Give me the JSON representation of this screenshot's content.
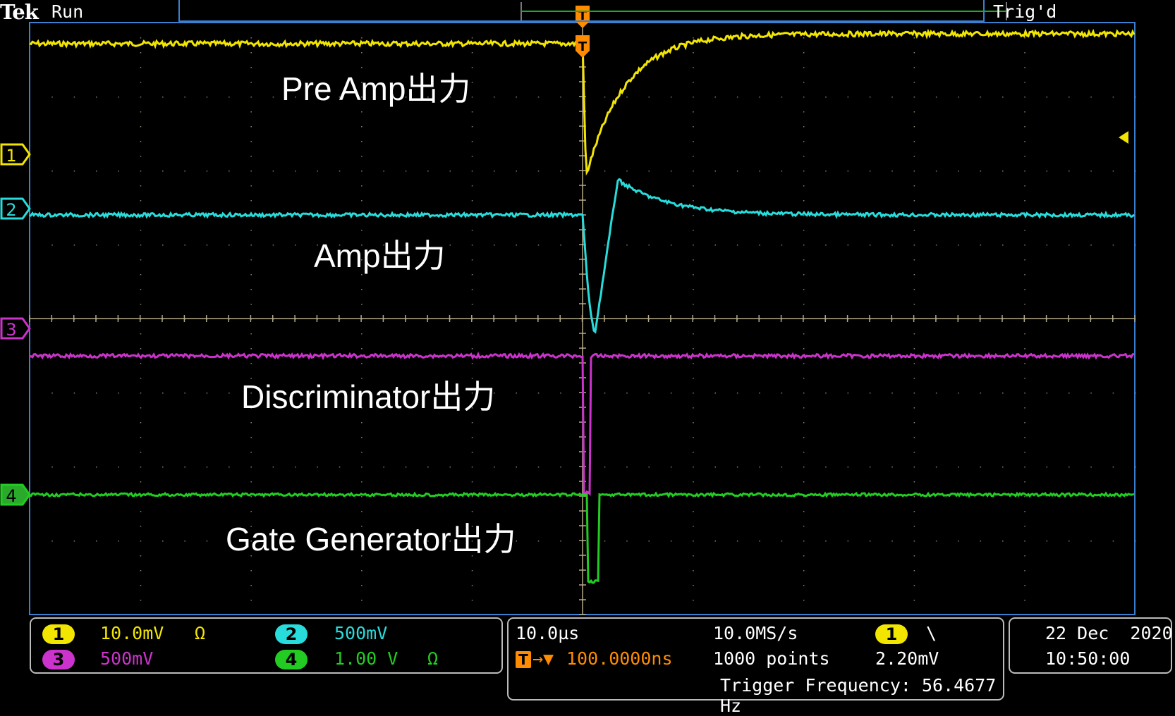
{
  "header": {
    "brand": "Tek",
    "state": "Run",
    "trigger_status": "Trig'd"
  },
  "markers": {
    "trigger": "T",
    "channels": [
      "1",
      "2",
      "3",
      "4"
    ]
  },
  "trace_labels": {
    "ch1": "Pre Amp出力",
    "ch2": "Amp出力",
    "ch3": "Discriminator出力",
    "ch4": "Gate Generator出力"
  },
  "channels": [
    {
      "number": "1",
      "scale": "10.0mV",
      "coupling_symbol": "Ω",
      "color": "#f2e600"
    },
    {
      "number": "2",
      "scale": "500mV",
      "coupling_symbol": "",
      "color": "#29dcdc"
    },
    {
      "number": "3",
      "scale": "500mV",
      "coupling_symbol": "",
      "color": "#cc33cc"
    },
    {
      "number": "4",
      "scale": "1.00 V",
      "coupling_symbol": "Ω",
      "color": "#22cc22"
    }
  ],
  "timebase": {
    "scale": "10.0µs",
    "sample_rate": "10.0MS/s",
    "trigger_icon": "T",
    "position": "100.0000ns",
    "record_length": "1000 points",
    "trigger_source": "1",
    "trigger_slope_symbol": "\\",
    "trigger_level": "2.20mV",
    "trigger_frequency": "Trigger Frequency: 56.4677 Hz"
  },
  "datetime": {
    "date": "22 Dec  2020",
    "time": "10:50:00"
  },
  "colors": {
    "ch1": "#f2e600",
    "ch2": "#29dcdc",
    "ch3": "#cc33cc",
    "ch4": "#22cc22",
    "trigger": "#ff8c00",
    "graticule": "#b4a888",
    "frame": "#3a7fd0"
  }
}
